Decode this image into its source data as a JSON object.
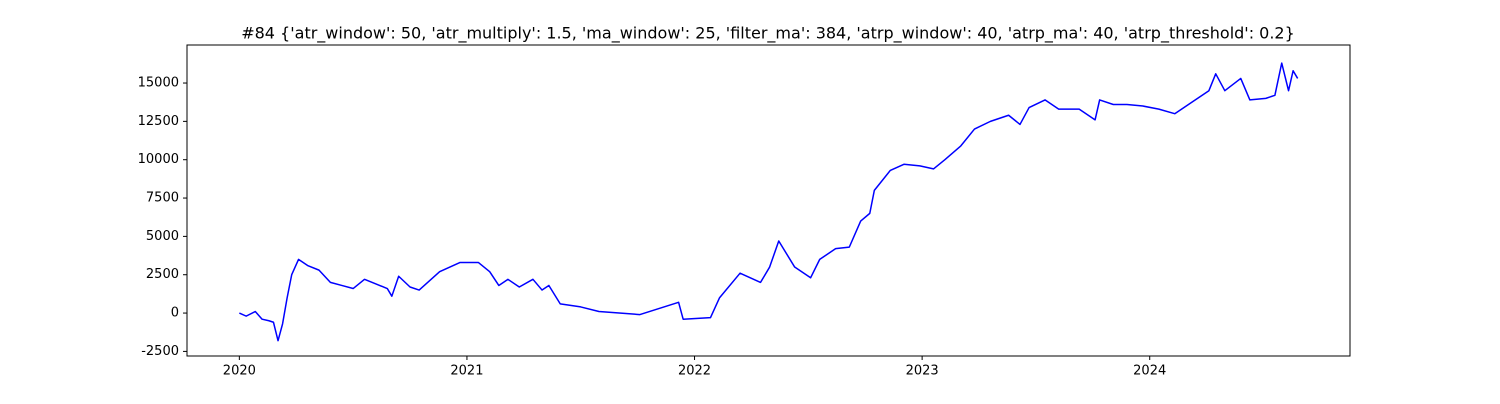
{
  "chart_data": {
    "type": "line",
    "title": "#84 {'atr_window': 50, 'atr_multiply': 1.5, 'ma_window': 25, 'filter_ma': 384, 'atrp_window': 40, 'atrp_ma': 40, 'atrp_threshold': 0.2}",
    "x": [
      2020.0,
      2020.03,
      2020.07,
      2020.1,
      2020.13,
      2020.15,
      2020.17,
      2020.19,
      2020.21,
      2020.23,
      2020.26,
      2020.3,
      2020.35,
      2020.4,
      2020.45,
      2020.5,
      2020.55,
      2020.6,
      2020.65,
      2020.67,
      2020.7,
      2020.75,
      2020.79,
      2020.88,
      2020.97,
      2021.05,
      2021.1,
      2021.14,
      2021.18,
      2021.23,
      2021.29,
      2021.33,
      2021.36,
      2021.41,
      2021.5,
      2021.58,
      2021.76,
      2021.93,
      2021.95,
      2022.07,
      2022.11,
      2022.2,
      2022.29,
      2022.33,
      2022.37,
      2022.44,
      2022.51,
      2022.55,
      2022.62,
      2022.68,
      2022.73,
      2022.77,
      2022.79,
      2022.86,
      2022.92,
      2022.99,
      2023.05,
      2023.1,
      2023.17,
      2023.23,
      2023.3,
      2023.38,
      2023.43,
      2023.47,
      2023.54,
      2023.6,
      2023.69,
      2023.76,
      2023.78,
      2023.84,
      2023.9,
      2023.97,
      2024.04,
      2024.11,
      2024.18,
      2024.26,
      2024.29,
      2024.33,
      2024.4,
      2024.44,
      2024.51,
      2024.55,
      2024.58,
      2024.61,
      2024.63,
      2024.65
    ],
    "series": [
      {
        "color": "#0000ff",
        "values": [
          0,
          -200,
          100,
          -400,
          -500,
          -600,
          -1800,
          -700,
          1000,
          2500,
          3500,
          3100,
          2800,
          2000,
          1800,
          1600,
          2200,
          1900,
          1600,
          1100,
          2400,
          1700,
          1500,
          2700,
          3300,
          3300,
          2700,
          1800,
          2200,
          1700,
          2200,
          1500,
          1800,
          600,
          400,
          100,
          -100,
          700,
          -400,
          -300,
          1000,
          2600,
          2000,
          3000,
          4700,
          3000,
          2300,
          3500,
          4200,
          4300,
          6000,
          6500,
          8000,
          9300,
          9700,
          9600,
          9400,
          10000,
          10900,
          12000,
          12500,
          12900,
          12300,
          13400,
          13900,
          13300,
          13300,
          12600,
          13900,
          13600,
          13600,
          13500,
          13300,
          13000,
          13700,
          14500,
          15600,
          14500,
          15300,
          13900,
          14000,
          14200,
          16300,
          14500,
          15800,
          15300
        ]
      }
    ],
    "xlim": [
      2019.77,
      2024.88
    ],
    "xticks": [
      2020,
      2021,
      2022,
      2023,
      2024
    ],
    "ylim": [
      -2800,
      17480
    ],
    "yticks": [
      -2500,
      0,
      2500,
      5000,
      7500,
      10000,
      12500,
      15000
    ]
  }
}
